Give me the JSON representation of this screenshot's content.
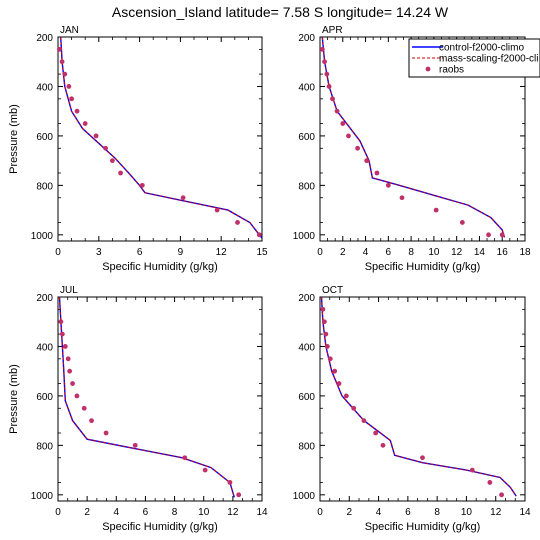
{
  "figure_title": "Ascension_Island  latitude= 7.58 S longitude= 14.24 W",
  "legend": {
    "entries": [
      {
        "label": "control-f2000-climo",
        "style": "line",
        "color": "#0000ff"
      },
      {
        "label": "mass-scaling-f2000-cli",
        "style": "dash",
        "color": "#cc0000"
      },
      {
        "label": "raobs",
        "style": "dot",
        "color": "#c0306a"
      }
    ]
  },
  "chart_data": [
    {
      "type": "line",
      "panel_label": "JAN",
      "xlabel": "Specific Humidity (g/kg)",
      "ylabel": "Pressure (mb)",
      "xlim": [
        0,
        15
      ],
      "xticks": [
        0,
        3,
        6,
        9,
        12,
        15
      ],
      "ylim": [
        200,
        1025
      ],
      "yticks": [
        200,
        400,
        600,
        800,
        1000
      ],
      "y_inverted": true,
      "series": [
        {
          "name": "control-f2000-climo",
          "color": "#0000ff",
          "x": [
            0.2,
            0.3,
            0.5,
            1.0,
            1.8,
            3.0,
            4.2,
            5.2,
            6.0,
            6.4,
            9.0,
            12.5,
            14.1,
            14.8,
            15.0
          ],
          "y": [
            200,
            300,
            400,
            500,
            570,
            630,
            690,
            750,
            800,
            830,
            860,
            900,
            950,
            1000,
            1013
          ]
        },
        {
          "name": "mass-scaling-f2000-cli",
          "color": "#cc0000",
          "x": [
            0.2,
            0.3,
            0.5,
            1.0,
            1.8,
            3.0,
            4.2,
            5.2,
            6.0,
            6.4,
            9.0,
            12.5,
            14.1,
            14.8,
            15.0
          ],
          "y": [
            200,
            300,
            400,
            500,
            570,
            630,
            690,
            750,
            800,
            830,
            860,
            900,
            950,
            1000,
            1013
          ]
        },
        {
          "name": "raobs",
          "color": "#c0306a",
          "x": [
            0.1,
            0.3,
            0.5,
            0.8,
            1.0,
            1.4,
            2.0,
            2.8,
            3.5,
            4.0,
            4.6,
            6.2,
            9.2,
            11.7,
            13.2,
            14.8
          ],
          "y": [
            250,
            300,
            350,
            400,
            450,
            500,
            550,
            600,
            650,
            700,
            750,
            800,
            850,
            900,
            950,
            1000
          ]
        }
      ]
    },
    {
      "type": "line",
      "panel_label": "APR",
      "xlabel": "Specific Humidity (g/kg)",
      "ylabel": "",
      "xlim": [
        0,
        18
      ],
      "xticks": [
        0,
        2,
        4,
        6,
        8,
        10,
        12,
        14,
        16,
        18
      ],
      "ylim": [
        200,
        1025
      ],
      "yticks": [
        200,
        400,
        600,
        800,
        1000
      ],
      "y_inverted": true,
      "series": [
        {
          "name": "control-f2000-climo",
          "color": "#0000ff",
          "x": [
            0.2,
            0.4,
            0.8,
            1.5,
            2.5,
            3.5,
            4.3,
            4.6,
            7.0,
            10.0,
            13.0,
            15.0,
            16.0,
            16.2
          ],
          "y": [
            200,
            300,
            400,
            500,
            560,
            620,
            700,
            770,
            800,
            840,
            880,
            930,
            980,
            1010
          ]
        },
        {
          "name": "mass-scaling-f2000-cli",
          "color": "#cc0000",
          "x": [
            0.2,
            0.4,
            0.8,
            1.5,
            2.5,
            3.5,
            4.3,
            4.6,
            7.0,
            10.0,
            13.0,
            15.0,
            16.0,
            16.2
          ],
          "y": [
            200,
            300,
            400,
            500,
            560,
            620,
            700,
            770,
            800,
            840,
            880,
            930,
            980,
            1010
          ]
        },
        {
          "name": "raobs",
          "color": "#c0306a",
          "x": [
            0.2,
            0.4,
            0.6,
            0.8,
            1.1,
            1.5,
            2.0,
            2.5,
            3.3,
            4.1,
            5.0,
            6.0,
            7.2,
            10.2,
            12.5,
            14.8,
            16.0
          ],
          "y": [
            250,
            300,
            350,
            400,
            450,
            500,
            550,
            600,
            650,
            700,
            750,
            800,
            850,
            900,
            950,
            1000,
            1000
          ]
        }
      ]
    },
    {
      "type": "line",
      "panel_label": "JUL",
      "xlabel": "Specific Humidity (g/kg)",
      "ylabel": "Pressure (mb)",
      "xlim": [
        0,
        14
      ],
      "xticks": [
        0,
        2,
        4,
        6,
        8,
        10,
        12,
        14
      ],
      "ylim": [
        200,
        1025
      ],
      "yticks": [
        200,
        400,
        600,
        800,
        1000
      ],
      "y_inverted": true,
      "series": [
        {
          "name": "control-f2000-climo",
          "color": "#0000ff",
          "x": [
            0.1,
            0.2,
            0.3,
            0.4,
            0.5,
            1.0,
            2.0,
            5.0,
            8.5,
            10.5,
            11.8,
            12.1
          ],
          "y": [
            200,
            300,
            400,
            500,
            620,
            700,
            775,
            810,
            850,
            890,
            950,
            1010
          ]
        },
        {
          "name": "mass-scaling-f2000-cli",
          "color": "#cc0000",
          "x": [
            0.1,
            0.2,
            0.3,
            0.4,
            0.5,
            1.0,
            2.0,
            5.0,
            8.5,
            10.5,
            11.8,
            12.1
          ],
          "y": [
            200,
            300,
            400,
            500,
            620,
            700,
            775,
            810,
            850,
            890,
            950,
            1010
          ]
        },
        {
          "name": "raobs",
          "color": "#c0306a",
          "x": [
            0.2,
            0.3,
            0.5,
            0.7,
            0.8,
            1.0,
            1.3,
            1.8,
            2.3,
            3.3,
            5.3,
            8.7,
            10.1,
            11.8,
            12.4
          ],
          "y": [
            300,
            350,
            400,
            450,
            500,
            550,
            600,
            650,
            700,
            750,
            800,
            850,
            900,
            950,
            1000
          ]
        }
      ]
    },
    {
      "type": "line",
      "panel_label": "OCT",
      "xlabel": "Specific Humidity (g/kg)",
      "ylabel": "",
      "xlim": [
        0,
        14
      ],
      "xticks": [
        0,
        2,
        4,
        6,
        8,
        10,
        12,
        14
      ],
      "ylim": [
        200,
        1025
      ],
      "yticks": [
        200,
        400,
        600,
        800,
        1000
      ],
      "y_inverted": true,
      "series": [
        {
          "name": "control-f2000-climo",
          "color": "#0000ff",
          "x": [
            0.1,
            0.2,
            0.4,
            0.8,
            1.5,
            3.0,
            4.8,
            5.1,
            7.0,
            10.0,
            12.3,
            13.0,
            13.4
          ],
          "y": [
            200,
            300,
            400,
            500,
            600,
            700,
            780,
            840,
            870,
            900,
            930,
            970,
            1005
          ]
        },
        {
          "name": "mass-scaling-f2000-cli",
          "color": "#cc0000",
          "x": [
            0.1,
            0.2,
            0.4,
            0.8,
            1.5,
            3.0,
            4.8,
            5.1,
            7.0,
            10.0,
            12.3,
            13.0,
            13.4
          ],
          "y": [
            200,
            300,
            400,
            500,
            600,
            700,
            780,
            840,
            870,
            900,
            930,
            970,
            1005
          ]
        },
        {
          "name": "raobs",
          "color": "#c0306a",
          "x": [
            0.2,
            0.3,
            0.4,
            0.5,
            0.7,
            1.0,
            1.3,
            1.8,
            2.3,
            3.0,
            3.8,
            4.3,
            7.0,
            10.4,
            11.6,
            12.4
          ],
          "y": [
            250,
            300,
            350,
            400,
            450,
            500,
            550,
            600,
            650,
            700,
            750,
            800,
            850,
            900,
            950,
            1000
          ]
        }
      ]
    }
  ]
}
